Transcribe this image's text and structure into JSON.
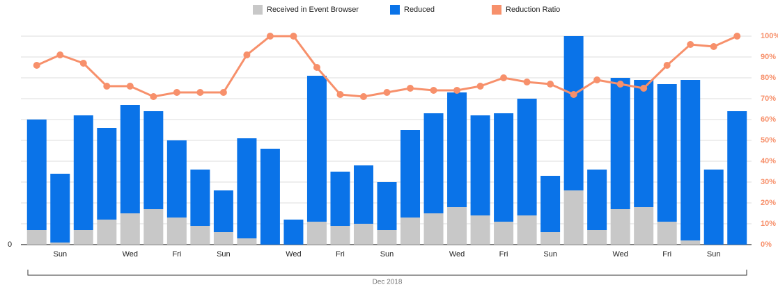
{
  "chart_data": {
    "type": "bar",
    "x_label": "Dec 2018",
    "categories": [
      null,
      "Sun",
      null,
      null,
      "Wed",
      null,
      "Fri",
      null,
      "Sun",
      null,
      null,
      "Wed",
      null,
      "Fri",
      null,
      "Sun",
      null,
      null,
      "Wed",
      null,
      "Fri",
      null,
      "Sun",
      null,
      null,
      "Wed",
      null,
      "Fri",
      null,
      "Sun",
      null
    ],
    "series": [
      {
        "name": "Received in Event Browser",
        "color": "#c8c8c8",
        "stack": true,
        "values": [
          7,
          1,
          7,
          12,
          15,
          17,
          13,
          9,
          6,
          3,
          0,
          0,
          11,
          9,
          10,
          7,
          13,
          15,
          18,
          14,
          11,
          14,
          6,
          26,
          7,
          17,
          18,
          11,
          2,
          0,
          0
        ]
      },
      {
        "name": "Reduced",
        "color": "#0a73e8",
        "stack": true,
        "values": [
          53,
          33,
          55,
          44,
          52,
          47,
          37,
          27,
          20,
          48,
          46,
          12,
          70,
          26,
          28,
          23,
          42,
          48,
          55,
          48,
          52,
          56,
          27,
          74,
          29,
          63,
          61,
          66,
          77,
          36,
          64
        ]
      },
      {
        "name": "Reduction Ratio",
        "color": "#f7906b",
        "type": "line",
        "axis": "y2",
        "values": [
          86,
          91,
          87,
          76,
          76,
          71,
          73,
          73,
          73,
          91,
          100,
          100,
          85,
          72,
          71,
          73,
          75,
          74,
          74,
          76,
          80,
          78,
          77,
          72,
          79,
          77,
          75,
          86,
          96,
          95,
          100
        ]
      }
    ],
    "ylim": [
      0,
      100
    ],
    "yticks": [
      0
    ],
    "y2lim": [
      0,
      100
    ],
    "y2ticks": [
      {
        "value": 0,
        "label": "0%"
      },
      {
        "value": 10,
        "label": "10%"
      },
      {
        "value": 20,
        "label": "20%"
      },
      {
        "value": 30,
        "label": "30%"
      },
      {
        "value": 40,
        "label": "40%"
      },
      {
        "value": 50,
        "label": "50%"
      },
      {
        "value": 60,
        "label": "60%"
      },
      {
        "value": 70,
        "label": "70%"
      },
      {
        "value": 80,
        "label": "80%"
      },
      {
        "value": 90,
        "label": "90%"
      },
      {
        "value": 100,
        "label": "100%"
      }
    ],
    "grid": true,
    "legend": "top"
  }
}
